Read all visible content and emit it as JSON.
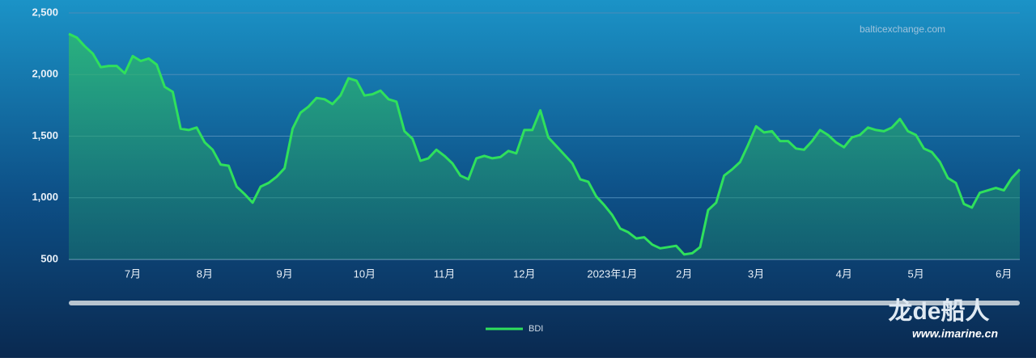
{
  "chart_data": {
    "type": "line",
    "watermark": "balticexchange.com",
    "watermark2": "龙de船人",
    "watermark2_url": "www.imarine.cn",
    "categories": [
      null,
      null,
      null,
      null,
      null,
      null,
      null,
      null,
      "7月",
      null,
      null,
      null,
      null,
      null,
      null,
      null,
      null,
      "8月",
      null,
      null,
      null,
      null,
      null,
      null,
      null,
      null,
      null,
      "9月",
      null,
      null,
      null,
      null,
      null,
      null,
      null,
      null,
      null,
      "10月",
      null,
      null,
      null,
      null,
      null,
      null,
      null,
      null,
      null,
      "11月",
      null,
      null,
      null,
      null,
      null,
      null,
      null,
      null,
      null,
      "12月",
      null,
      null,
      null,
      null,
      null,
      null,
      null,
      null,
      null,
      null,
      "2023年1月",
      null,
      null,
      null,
      null,
      null,
      null,
      null,
      null,
      "2月",
      null,
      null,
      null,
      null,
      null,
      null,
      null,
      null,
      "3月",
      null,
      null,
      null,
      null,
      null,
      null,
      null,
      null,
      null,
      null,
      "4月",
      null,
      null,
      null,
      null,
      null,
      null,
      null,
      null,
      "5月",
      null,
      null,
      null,
      null,
      null,
      null,
      null,
      null,
      null,
      null,
      "6月",
      null,
      null
    ],
    "series": [
      {
        "name": "BDI",
        "color": "#2fe05c",
        "values": [
          2330,
          2300,
          2230,
          2170,
          2060,
          2070,
          2070,
          2010,
          2150,
          2110,
          2130,
          2080,
          1900,
          1860,
          1560,
          1550,
          1570,
          1450,
          1390,
          1270,
          1260,
          1090,
          1030,
          960,
          1090,
          1120,
          1170,
          1240,
          1560,
          1690,
          1740,
          1810,
          1800,
          1760,
          1830,
          1970,
          1950,
          1830,
          1840,
          1870,
          1800,
          1780,
          1540,
          1480,
          1300,
          1320,
          1390,
          1340,
          1280,
          1180,
          1150,
          1320,
          1340,
          1320,
          1330,
          1380,
          1360,
          1550,
          1550,
          1710,
          1490,
          1420,
          1350,
          1280,
          1150,
          1130,
          1010,
          940,
          860,
          750,
          720,
          670,
          680,
          620,
          590,
          600,
          610,
          540,
          550,
          600,
          900,
          960,
          1180,
          1230,
          1290,
          1430,
          1580,
          1530,
          1540,
          1460,
          1460,
          1400,
          1390,
          1460,
          1550,
          1510,
          1450,
          1410,
          1490,
          1510,
          1570,
          1550,
          1540,
          1570,
          1640,
          1540,
          1510,
          1400,
          1370,
          1290,
          1160,
          1120,
          950,
          920,
          1040,
          1060,
          1080,
          1060,
          1160,
          1230
        ]
      }
    ],
    "ylim": [
      500,
      2500
    ],
    "yticks": [
      500,
      {
        "value": 1000,
        "label": "1,000"
      },
      {
        "value": 1500,
        "label": "1,500"
      },
      {
        "value": 2000,
        "label": "2,000"
      },
      {
        "value": 2500,
        "label": "2,500"
      }
    ],
    "grid": true
  }
}
